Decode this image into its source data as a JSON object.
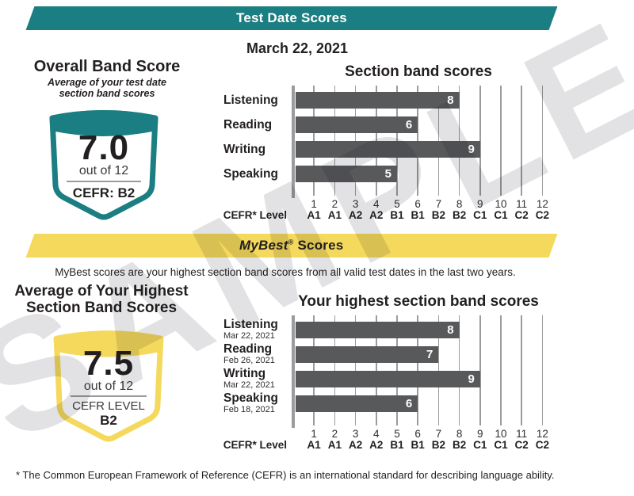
{
  "colors": {
    "teal": "#1b7e82",
    "yellow": "#f5d95c",
    "bar": "#58595b",
    "grid": "#9b9b9d",
    "watermark": "#e2e2e4"
  },
  "watermark": "SAMPLE",
  "test_date_section": {
    "banner": "Test Date Scores",
    "date": "March 22, 2021",
    "overall": {
      "title": "Overall Band Score",
      "subtitle_line1": "Average of your test date",
      "subtitle_line2": "section band scores",
      "score": "7.0",
      "out_of": "out of 12",
      "cefr": "CEFR: B2"
    }
  },
  "mybest_section": {
    "banner_italic": "MyBest",
    "banner_reg_mark": "®",
    "banner_rest": "Scores",
    "description": "MyBest scores are your highest section band scores from all valid test dates in the last two years.",
    "average": {
      "title_line1": "Average of Your Highest",
      "title_line2": "Section Band Scores",
      "score": "7.5",
      "out_of": "out of 12",
      "cefr_label": "CEFR LEVEL",
      "cefr_value": "B2"
    }
  },
  "footnote": "* The Common European Framework of Reference (CEFR) is an international standard for describing language ability.",
  "chart_data": [
    {
      "type": "bar",
      "orientation": "horizontal",
      "title": "Section band scores",
      "categories": [
        "Listening",
        "Reading",
        "Writing",
        "Speaking"
      ],
      "values": [
        8,
        6,
        9,
        5
      ],
      "xlim": [
        0,
        12
      ],
      "x_ticks": [
        "1",
        "2",
        "3",
        "4",
        "5",
        "6",
        "7",
        "8",
        "9",
        "10",
        "11",
        "12"
      ],
      "x_tick_cefr": [
        "A1",
        "A1",
        "A2",
        "A2",
        "B1",
        "B1",
        "B2",
        "B2",
        "C1",
        "C1",
        "C2",
        "C2"
      ],
      "axis_label": "CEFR* Level",
      "bar_color": "#58595b",
      "grid": true,
      "legend": false
    },
    {
      "type": "bar",
      "orientation": "horizontal",
      "title": "Your highest section band scores",
      "categories": [
        "Listening",
        "Reading",
        "Writing",
        "Speaking"
      ],
      "dates": [
        "Mar 22, 2021",
        "Feb 26, 2021",
        "Mar 22, 2021",
        "Feb 18, 2021"
      ],
      "values": [
        8,
        7,
        9,
        6
      ],
      "xlim": [
        0,
        12
      ],
      "x_ticks": [
        "1",
        "2",
        "3",
        "4",
        "5",
        "6",
        "7",
        "8",
        "9",
        "10",
        "11",
        "12"
      ],
      "x_tick_cefr": [
        "A1",
        "A1",
        "A2",
        "A2",
        "B1",
        "B1",
        "B2",
        "B2",
        "C1",
        "C1",
        "C2",
        "C2"
      ],
      "axis_label": "CEFR* Level",
      "bar_color": "#58595b",
      "grid": true,
      "legend": false
    }
  ]
}
